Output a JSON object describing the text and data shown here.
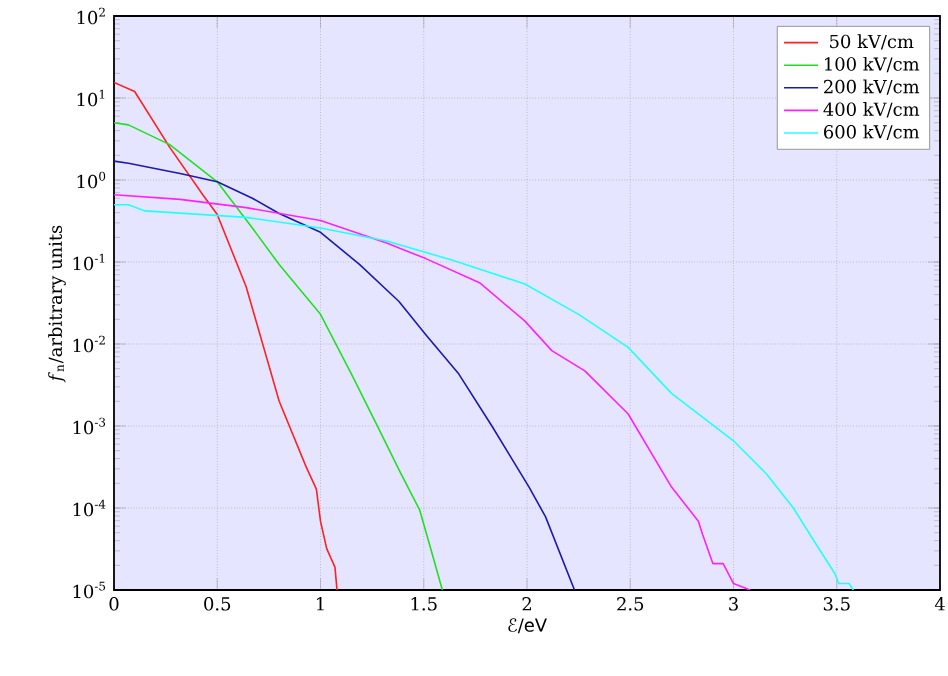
{
  "chart_data": {
    "type": "line",
    "xlabel": "ℰ/eV",
    "ylabel": "*f*$_{n}$/arbitrary units",
    "log": "y",
    "grid": true,
    "legend": "top right",
    "line_style": "solid",
    "marker": "none",
    "xlim": [
      0,
      4
    ],
    "xticks": [
      0,
      0.5,
      1,
      1.5,
      2,
      2.5,
      3,
      3.5,
      4
    ],
    "ylim": [
      1e-05,
      100
    ],
    "yticks": [
      {
        "value": 1e-05,
        "label": "10$^{-5}$"
      },
      {
        "value": 0.0001,
        "label": "10$^{-4}$"
      },
      {
        "value": 0.001,
        "label": "10$^{-3}$"
      },
      {
        "value": 0.01,
        "label": "10$^{-2}$"
      },
      {
        "value": 0.1,
        "label": "10$^{-1}$"
      },
      {
        "value": 1,
        "label": "10$^{0}$"
      },
      {
        "value": 10,
        "label": "10$^{1}$"
      },
      {
        "value": 100,
        "label": "10$^{2}$"
      }
    ],
    "series": [
      {
        "name": "50 kV/cm",
        "color": "#ff2020",
        "x": [
          0,
          0.1,
          0.27,
          0.43,
          0.5,
          0.64,
          0.8,
          0.93,
          0.98,
          1.0,
          1.03,
          1.07,
          1.08
        ],
        "values": [
          15.5,
          12,
          2.5,
          0.66,
          0.38,
          0.05,
          0.002,
          0.00032,
          0.00017,
          6.9e-05,
          3.2e-05,
          1.9e-05,
          1e-05
        ]
      },
      {
        "name": "100 kV/cm",
        "color": "#20e020",
        "x": [
          0,
          0.07,
          0.27,
          0.5,
          0.67,
          0.8,
          1.0,
          1.15,
          1.28,
          1.39,
          1.48,
          1.54,
          1.59
        ],
        "values": [
          5.0,
          4.7,
          2.7,
          0.95,
          0.26,
          0.093,
          0.023,
          0.0043,
          0.00095,
          0.00026,
          9.5e-05,
          2.8e-05,
          1e-05
        ]
      },
      {
        "name": "200 kV/cm",
        "color": "#1a1ab0",
        "x": [
          0,
          0.07,
          0.32,
          0.5,
          0.67,
          0.8,
          1.0,
          1.19,
          1.38,
          1.51,
          1.67,
          1.83,
          2.01,
          2.09,
          2.23
        ],
        "values": [
          1.7,
          1.6,
          1.2,
          0.95,
          0.6,
          0.39,
          0.23,
          0.093,
          0.033,
          0.013,
          0.0043,
          0.001,
          0.00018,
          7.8e-05,
          1e-05
        ]
      },
      {
        "name": "400 kV/cm",
        "color": "#ff20ff",
        "x": [
          0,
          0.32,
          0.64,
          1.0,
          1.32,
          1.51,
          1.77,
          1.99,
          2.12,
          2.28,
          2.49,
          2.7,
          2.83,
          2.85,
          2.9,
          2.95,
          3.0,
          3.08
        ],
        "values": [
          0.66,
          0.58,
          0.46,
          0.32,
          0.17,
          0.11,
          0.056,
          0.019,
          0.0083,
          0.0047,
          0.0014,
          0.00018,
          6.9e-05,
          4.8e-05,
          2.1e-05,
          2.1e-05,
          1.2e-05,
          1e-05
        ]
      },
      {
        "name": "600 kV/cm",
        "color": "#20ffff",
        "x": [
          0,
          0.07,
          0.15,
          0.64,
          1.0,
          1.32,
          1.64,
          1.99,
          2.25,
          2.49,
          2.7,
          3.0,
          3.16,
          3.29,
          3.41,
          3.49,
          3.51,
          3.56,
          3.58
        ],
        "values": [
          0.5,
          0.5,
          0.42,
          0.35,
          0.26,
          0.18,
          0.105,
          0.054,
          0.023,
          0.0091,
          0.0025,
          0.00066,
          0.00026,
          0.0001,
          3.3e-05,
          1.6e-05,
          1.2e-05,
          1.2e-05,
          1e-05
        ]
      }
    ]
  }
}
